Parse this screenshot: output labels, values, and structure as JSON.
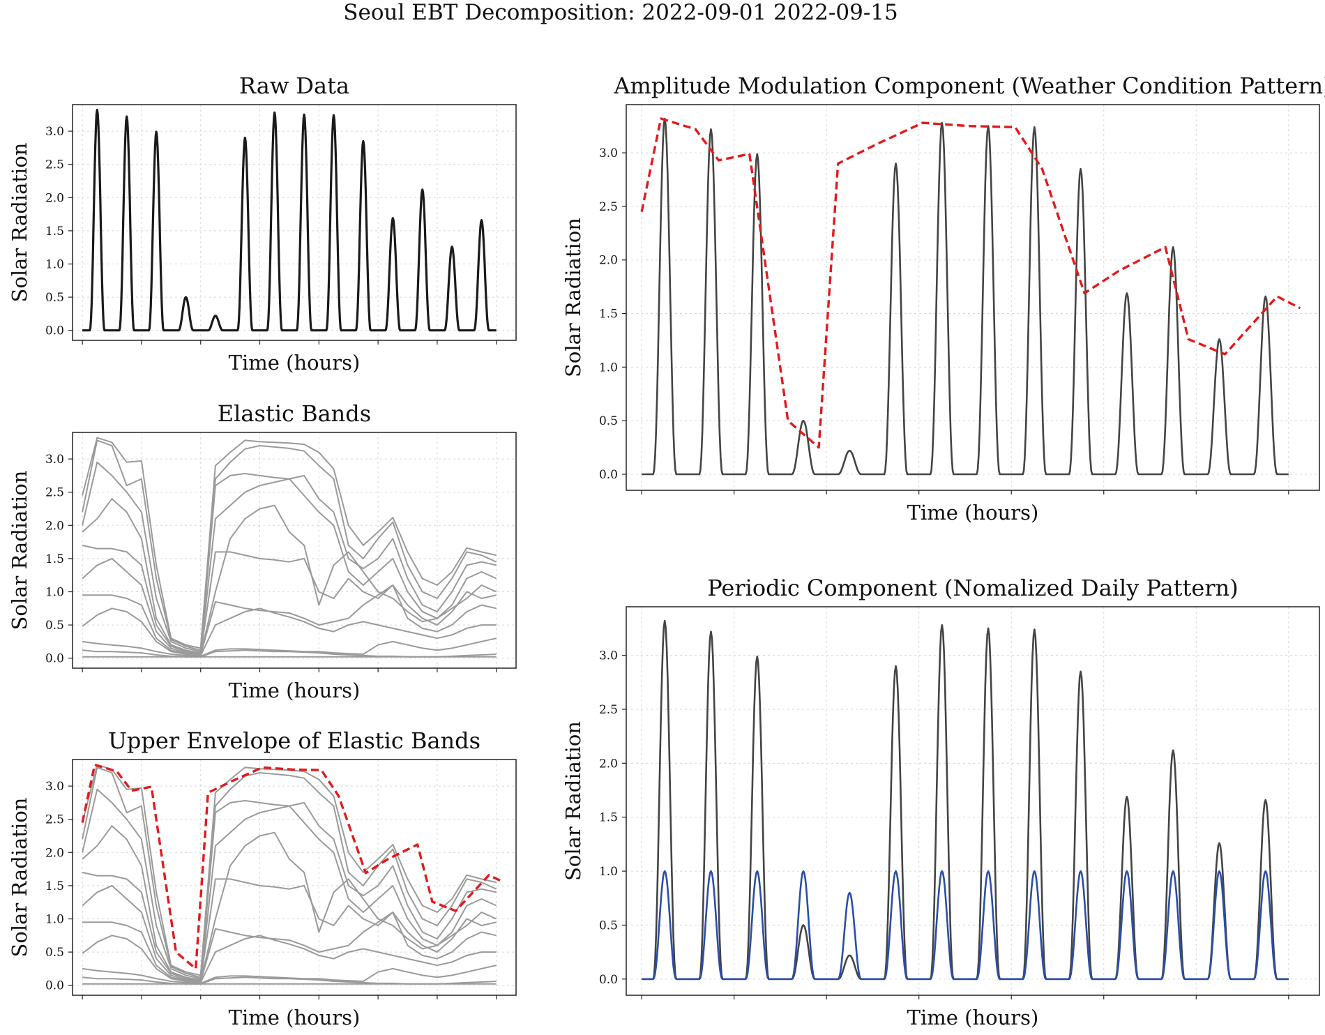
{
  "suptitle": "Seoul EBT Decomposition: 2022-09-01   2022-09-15",
  "colors": {
    "raw": "#1a1a1a",
    "signal": "#444444",
    "bands": "#9a9a9a",
    "envelope": "#e31a1c",
    "periodic": "#2b4ea6"
  },
  "chart_data": [
    {
      "id": "raw",
      "type": "line",
      "title": "Raw Data",
      "xlabel": "Time (hours)",
      "ylabel": "Solar Radiation",
      "ylim": [
        -0.15,
        3.4
      ],
      "yticks": [
        "0.0",
        "0.5",
        "1.0",
        "1.5",
        "2.0",
        "2.5",
        "3.0"
      ],
      "xlim": [
        -8,
        352
      ],
      "series": [
        {
          "name": "Raw Data",
          "color": "raw",
          "kind": "daily",
          "source": "raw_daily_peaks"
        }
      ]
    },
    {
      "id": "bands",
      "type": "line",
      "title": "Elastic Bands",
      "xlabel": "Time (hours)",
      "ylabel": "Solar Radiation",
      "ylim": [
        -0.15,
        3.4
      ],
      "yticks": [
        "0.0",
        "0.5",
        "1.0",
        "1.5",
        "2.0",
        "2.5",
        "3.0"
      ],
      "xlim": [
        -8,
        352
      ],
      "series": [
        {
          "name": "Elastic Bands",
          "color": "bands",
          "kind": "bands"
        }
      ]
    },
    {
      "id": "upper",
      "type": "line",
      "title": "Upper Envelope of Elastic Bands",
      "xlabel": "Time (hours)",
      "ylabel": "Solar Radiation",
      "ylim": [
        -0.15,
        3.4
      ],
      "yticks": [
        "0.0",
        "0.5",
        "1.0",
        "1.5",
        "2.0",
        "2.5",
        "3.0"
      ],
      "xlim": [
        -8,
        352
      ],
      "series": [
        {
          "name": "Elastic Bands",
          "color": "bands",
          "kind": "bands"
        },
        {
          "name": "Upper Envelope",
          "color": "envelope",
          "kind": "envelope",
          "dashed": true
        }
      ]
    },
    {
      "id": "amplitude",
      "type": "line",
      "title": "Amplitude Modulation Component (Weather Condition Pattern)",
      "xlabel": "Time (hours)",
      "ylabel": "Solar Radiation",
      "ylim": [
        -0.15,
        3.45
      ],
      "yticks": [
        "0.0",
        "0.5",
        "1.0",
        "1.5",
        "2.0",
        "2.5",
        "3.0"
      ],
      "xlim": [
        -8,
        352
      ],
      "series": [
        {
          "name": "Raw Data",
          "color": "signal",
          "kind": "daily",
          "source": "raw_daily_peaks"
        },
        {
          "name": "Amplitude Modulation",
          "color": "envelope",
          "kind": "envelope",
          "dashed": true
        }
      ]
    },
    {
      "id": "periodic",
      "type": "line",
      "title": "Periodic Component (Nomalized Daily Pattern)",
      "xlabel": "Time (hours)",
      "ylabel": "Solar Radiation",
      "ylim": [
        -0.15,
        3.45
      ],
      "yticks": [
        "0.0",
        "0.5",
        "1.0",
        "1.5",
        "2.0",
        "2.5",
        "3.0"
      ],
      "xlim": [
        -8,
        352
      ],
      "series": [
        {
          "name": "Raw Data",
          "color": "signal",
          "kind": "daily",
          "source": "raw_daily_peaks"
        },
        {
          "name": "Periodic Component",
          "color": "periodic",
          "kind": "daily",
          "source": "periodic_daily_peaks"
        }
      ]
    }
  ],
  "raw_daily_peaks": [
    3.32,
    3.22,
    2.99,
    0.5,
    0.22,
    2.9,
    3.28,
    3.25,
    3.24,
    2.85,
    1.69,
    2.12,
    1.26,
    1.66
  ],
  "periodic_daily_peaks": [
    1.0,
    1.0,
    1.0,
    1.0,
    0.8,
    1.0,
    1.0,
    1.0,
    1.0,
    1.0,
    1.0,
    1.0,
    1.0,
    1.0
  ],
  "envelope_points": {
    "x": [
      0,
      10,
      28,
      40,
      56,
      76,
      92,
      102,
      122,
      146,
      170,
      194,
      208,
      230,
      248,
      272,
      284,
      303,
      330,
      342
    ],
    "y": [
      2.45,
      3.32,
      3.22,
      2.93,
      2.99,
      0.5,
      0.25,
      2.9,
      3.08,
      3.28,
      3.25,
      3.24,
      2.85,
      1.69,
      1.9,
      2.12,
      1.26,
      1.12,
      1.66,
      1.55
    ]
  },
  "elastic_bands": {
    "x": [
      0,
      12,
      24,
      36,
      48,
      60,
      72,
      84,
      96,
      108,
      120,
      132,
      144,
      156,
      168,
      180,
      192,
      204,
      216,
      228,
      240,
      252,
      264,
      276,
      288,
      300,
      312,
      324,
      336
    ],
    "bands": [
      [
        2.45,
        3.32,
        3.25,
        2.95,
        2.97,
        1.4,
        0.3,
        0.2,
        0.15,
        2.9,
        3.1,
        3.28,
        3.26,
        3.25,
        3.24,
        3.22,
        3.1,
        2.85,
        2.0,
        1.7,
        1.9,
        2.12,
        1.6,
        1.2,
        1.1,
        1.3,
        1.66,
        1.6,
        1.55
      ],
      [
        2.2,
        3.28,
        3.2,
        2.6,
        2.7,
        1.2,
        0.28,
        0.18,
        0.12,
        2.7,
        2.95,
        3.15,
        3.2,
        3.18,
        3.16,
        3.12,
        2.9,
        2.7,
        1.7,
        1.5,
        1.8,
        2.05,
        1.4,
        1.0,
        0.9,
        1.2,
        1.6,
        1.55,
        1.45
      ],
      [
        2.0,
        2.95,
        2.75,
        2.5,
        2.2,
        0.9,
        0.25,
        0.15,
        0.1,
        2.6,
        2.75,
        2.78,
        2.75,
        2.72,
        2.7,
        2.75,
        2.4,
        2.2,
        1.5,
        1.35,
        1.5,
        1.8,
        1.2,
        0.8,
        0.7,
        1.0,
        1.4,
        1.45,
        1.4
      ],
      [
        1.9,
        2.1,
        2.4,
        2.2,
        1.8,
        0.6,
        0.2,
        0.12,
        0.08,
        2.1,
        2.3,
        2.5,
        2.6,
        2.65,
        2.7,
        2.45,
        2.2,
        2.0,
        1.3,
        1.1,
        1.3,
        1.5,
        1.0,
        0.7,
        0.6,
        0.8,
        1.2,
        1.3,
        1.2
      ],
      [
        1.7,
        1.65,
        1.65,
        1.6,
        1.4,
        0.5,
        0.18,
        0.1,
        0.07,
        1.6,
        1.6,
        1.55,
        1.5,
        1.48,
        1.45,
        1.5,
        1.0,
        0.9,
        1.2,
        1.0,
        0.9,
        1.1,
        0.8,
        0.6,
        0.5,
        0.7,
        1.0,
        0.9,
        0.95
      ],
      [
        1.2,
        1.4,
        1.5,
        1.3,
        1.1,
        0.4,
        0.15,
        0.08,
        0.06,
        1.0,
        1.8,
        2.1,
        2.25,
        2.3,
        1.9,
        1.7,
        0.8,
        1.4,
        1.6,
        1.3,
        1.0,
        0.9,
        0.7,
        0.55,
        0.6,
        0.75,
        0.9,
        1.1,
        1.0
      ],
      [
        0.95,
        0.95,
        0.95,
        0.9,
        0.8,
        0.3,
        0.12,
        0.07,
        0.05,
        0.85,
        0.8,
        0.75,
        0.72,
        0.7,
        0.68,
        0.6,
        0.5,
        0.55,
        0.6,
        0.8,
        0.95,
        1.1,
        0.6,
        0.45,
        0.4,
        0.5,
        0.7,
        0.8,
        0.75
      ],
      [
        0.48,
        0.65,
        0.75,
        0.7,
        0.55,
        0.25,
        0.1,
        0.06,
        0.04,
        0.5,
        0.6,
        0.7,
        0.75,
        0.68,
        0.62,
        0.55,
        0.45,
        0.4,
        0.5,
        0.55,
        0.5,
        0.45,
        0.4,
        0.35,
        0.3,
        0.35,
        0.45,
        0.5,
        0.5
      ],
      [
        0.25,
        0.22,
        0.2,
        0.18,
        0.15,
        0.1,
        0.06,
        0.04,
        0.03,
        0.12,
        0.14,
        0.14,
        0.13,
        0.12,
        0.11,
        0.1,
        0.1,
        0.08,
        0.07,
        0.06,
        0.2,
        0.25,
        0.2,
        0.15,
        0.12,
        0.15,
        0.2,
        0.25,
        0.3
      ],
      [
        0.12,
        0.1,
        0.1,
        0.09,
        0.08,
        0.05,
        0.03,
        0.02,
        0.02,
        0.1,
        0.11,
        0.12,
        0.11,
        0.1,
        0.1,
        0.09,
        0.08,
        0.06,
        0.05,
        0.04,
        0.03,
        0.03,
        0.02,
        0.02,
        0.02,
        0.03,
        0.04,
        0.05,
        0.06
      ],
      [
        0.02,
        0.02,
        0.02,
        0.02,
        0.02,
        0.02,
        0.02,
        0.02,
        0.02,
        0.02,
        0.02,
        0.02,
        0.02,
        0.02,
        0.02,
        0.02,
        0.02,
        0.02,
        0.02,
        0.02,
        0.02,
        0.02,
        0.02,
        0.02,
        0.02,
        0.02,
        0.02,
        0.02,
        0.02
      ]
    ]
  }
}
